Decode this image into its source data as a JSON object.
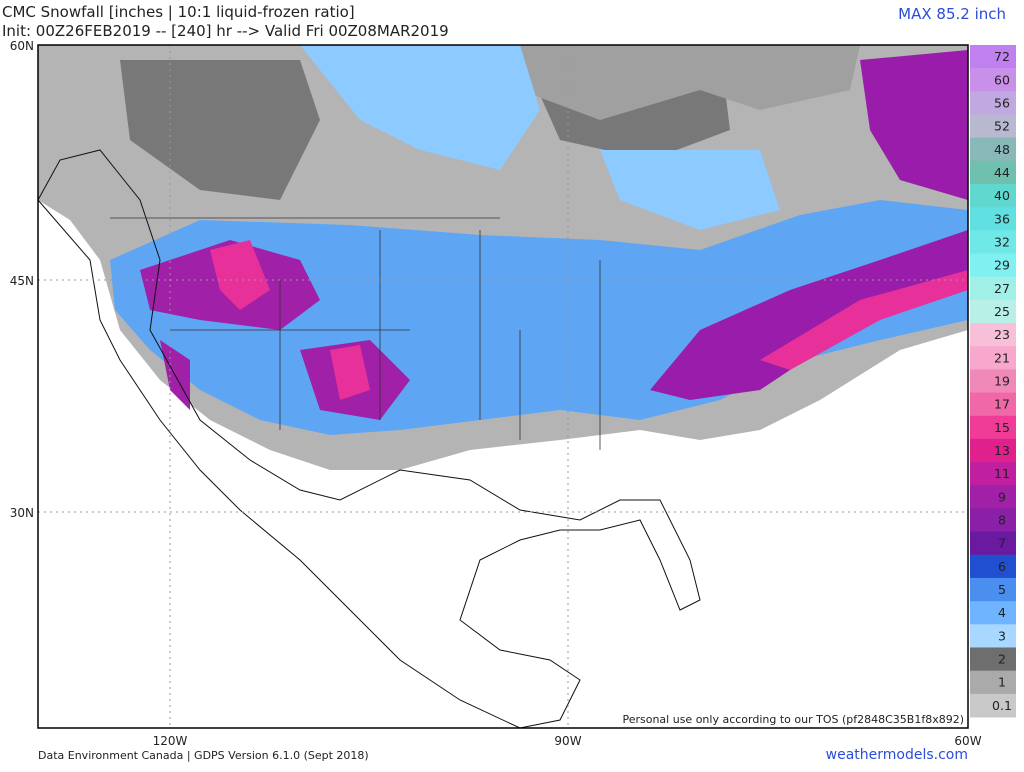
{
  "header": {
    "title": "CMC Snowfall [inches | 10:1 liquid-frozen ratio]",
    "subtitle": "Init: 00Z26FEB2019 -- [240] hr --> Valid Fri 00Z08MAR2019",
    "max": "MAX 85.2 inch"
  },
  "axes": {
    "lat": [
      "60N",
      "45N",
      "30N"
    ],
    "lon": [
      "120W",
      "90W",
      "60W"
    ]
  },
  "legend": {
    "levels": [
      72,
      60,
      56,
      52,
      48,
      44,
      40,
      36,
      32,
      29,
      27,
      25,
      23,
      21,
      19,
      17,
      15,
      13,
      11,
      9,
      8,
      7,
      6,
      5,
      4,
      3,
      2,
      1,
      0.1
    ],
    "colors": [
      "#c080f0",
      "#c890e8",
      "#c0a8e0",
      "#b8b8d0",
      "#88b8b8",
      "#70c0b0",
      "#60d8d0",
      "#60e0e0",
      "#70e8e8",
      "#80f0f0",
      "#a0f0e8",
      "#b8f0e8",
      "#f8c0d8",
      "#f8a8cc",
      "#f088b8",
      "#f068a8",
      "#f03c96",
      "#e0208c",
      "#c020a0",
      "#a020a8",
      "#8a20a8",
      "#6a1aa0",
      "#2050d0",
      "#4a8ef0",
      "#6eb4ff",
      "#a8d8ff",
      "#6e6e6e",
      "#aaaaaa",
      "#c8c8c8"
    ]
  },
  "footer": {
    "notice": "Personal use only according to our TOS (pf2848C35B1f8x892)",
    "source": "Data Environment Canada | GDPS Version 6.1.0 (Sept 2018)",
    "site": "weathermodels.com"
  }
}
